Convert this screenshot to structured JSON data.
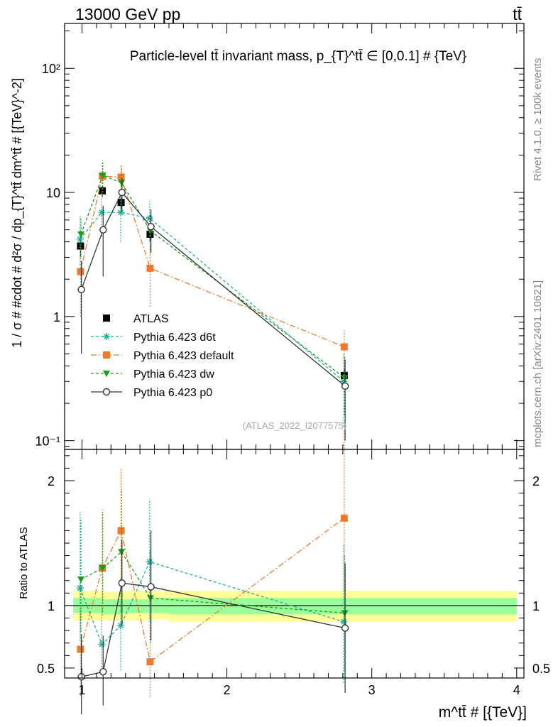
{
  "header": {
    "left": "13000 GeV pp",
    "right": "tt̄"
  },
  "side_labels": {
    "rivet": "Rivet 4.1.0, ≥ 100k events",
    "mcplots": "mcplots.cern.ch [arXiv:2401.10621]"
  },
  "chart_data": [
    {
      "type": "line",
      "panel": "main",
      "title": "Particle-level tt̄ invariant mass, p_{T}^tt̄ ∈ [0,0.1] # {TeV}",
      "ylabel": "1 / σ # #cdot # d²σ / dp_{T}^tt̄ dm^tt̄ # [{TeV}^-2]",
      "xlabel": "m^tt̄ # [{TeV}]",
      "yscale": "log",
      "ylim": [
        0.085,
        230
      ],
      "xlim": [
        0.88,
        4.05
      ],
      "ytick_labels": [
        "10⁻¹",
        "1",
        "10",
        "10²"
      ],
      "xtick_labels": [
        "1",
        "2",
        "3",
        "4"
      ],
      "watermark": "(ATLAS_2022_I2077575)",
      "series": [
        {
          "name": "ATLAS",
          "color": "#000000",
          "marker": "square",
          "x": [
            0.99,
            1.14,
            1.27,
            1.47,
            2.81
          ],
          "y": [
            3.7,
            10.3,
            8.3,
            4.6,
            0.335
          ],
          "ylo": [
            3.0,
            9.2,
            7.4,
            4.1,
            0.3
          ],
          "yhi": [
            4.4,
            11.4,
            9.2,
            5.1,
            0.37
          ]
        },
        {
          "name": "Pythia 6.423 d6t",
          "color": "#1ab29a",
          "marker": "star",
          "dash": "4,3",
          "x": [
            0.99,
            1.14,
            1.27,
            1.47,
            2.81
          ],
          "y": [
            4.2,
            6.9,
            6.9,
            6.2,
            0.3
          ],
          "ylo": [
            2.6,
            4.4,
            4.0,
            4.0,
            0.13
          ],
          "yhi": [
            6.5,
            10.0,
            10.5,
            8.5,
            0.5
          ]
        },
        {
          "name": "Pythia 6.423 default",
          "color": "#f07a2a",
          "marker": "square",
          "dash": "8,3,2,3",
          "x": [
            0.99,
            1.14,
            1.27,
            1.47,
            2.81
          ],
          "y": [
            2.3,
            13.5,
            13.3,
            2.45,
            0.57
          ],
          "ylo": [
            1.0,
            9.5,
            9.5,
            1.2,
            0.38
          ],
          "yhi": [
            3.8,
            18.0,
            17.0,
            3.9,
            0.77
          ]
        },
        {
          "name": "Pythia 6.423 dw",
          "color": "#1a9b1a",
          "marker": "triangle-down",
          "dash": "4,3",
          "x": [
            0.99,
            1.14,
            1.27,
            1.47,
            2.81
          ],
          "y": [
            4.6,
            13.7,
            12.0,
            4.9,
            0.32
          ],
          "ylo": [
            3.0,
            10.0,
            8.0,
            3.2,
            0.16
          ],
          "yhi": [
            6.3,
            18.0,
            16.0,
            6.6,
            0.48
          ]
        },
        {
          "name": "Pythia 6.423 p0",
          "color": "#333333",
          "marker": "circle",
          "x": [
            0.99,
            1.14,
            1.27,
            1.47,
            2.81
          ],
          "y": [
            1.65,
            5.0,
            10.0,
            5.3,
            0.275
          ],
          "ylo": [
            0.5,
            2.1,
            7.0,
            3.3,
            0.1
          ],
          "yhi": [
            2.8,
            7.8,
            13.0,
            7.3,
            0.45
          ]
        }
      ]
    },
    {
      "type": "line",
      "panel": "ratio",
      "ylabel": "Ratio to ATLAS",
      "ylim": [
        0.42,
        2.25
      ],
      "xlim": [
        0.88,
        4.05
      ],
      "ytick_labels": [
        "0.5",
        "1",
        "2"
      ],
      "xtick_labels": [
        "1",
        "2",
        "3",
        "4"
      ],
      "bands": [
        {
          "name": "yellow",
          "color": "#ffff99",
          "edges": [
            0.88,
            1.14,
            1.27,
            1.47,
            1.6,
            4.0
          ],
          "lo": [
            0.88,
            0.88,
            0.88,
            0.89,
            0.87
          ],
          "hi": [
            1.12,
            1.11,
            1.12,
            1.12,
            1.12
          ]
        },
        {
          "name": "green",
          "color": "#99ff99",
          "edges": [
            0.88,
            1.14,
            1.27,
            1.47,
            1.6,
            4.0
          ],
          "lo": [
            0.94,
            0.93,
            0.94,
            0.94,
            0.93
          ],
          "hi": [
            1.06,
            1.05,
            1.05,
            1.06,
            1.06
          ]
        }
      ],
      "series": [
        {
          "name": "Pythia 6.423 d6t",
          "color": "#1ab29a",
          "marker": "star",
          "dash": "4,3",
          "x": [
            0.99,
            1.14,
            1.27,
            1.47,
            2.81
          ],
          "y": [
            1.14,
            0.69,
            0.84,
            1.35,
            0.87
          ],
          "ylo": [
            0.72,
            0.44,
            0.48,
            0.87,
            0.38
          ],
          "yhi": [
            1.75,
            1.0,
            1.23,
            1.85,
            1.49
          ]
        },
        {
          "name": "Pythia 6.423 default",
          "color": "#f07a2a",
          "marker": "square",
          "dash": "8,3,2,3",
          "x": [
            0.99,
            1.14,
            1.27,
            1.47,
            2.81
          ],
          "y": [
            0.65,
            1.3,
            1.6,
            0.55,
            1.7
          ],
          "ylo": [
            0.28,
            0.92,
            1.15,
            0.27,
            1.12
          ],
          "yhi": [
            1.02,
            1.77,
            2.1,
            0.85,
            2.4
          ]
        },
        {
          "name": "Pythia 6.423 dw",
          "color": "#1a9b1a",
          "marker": "triangle-down",
          "dash": "4,3",
          "x": [
            0.99,
            1.14,
            1.27,
            1.47,
            2.81
          ],
          "y": [
            1.21,
            1.3,
            1.43,
            1.06,
            0.94
          ],
          "ylo": [
            0.79,
            0.95,
            0.95,
            0.7,
            0.48
          ],
          "yhi": [
            1.7,
            1.75,
            1.93,
            1.45,
            1.4
          ]
        },
        {
          "name": "Pythia 6.423 p0",
          "color": "#333333",
          "marker": "circle",
          "x": [
            0.99,
            1.14,
            1.27,
            1.47,
            2.81
          ],
          "y": [
            0.43,
            0.47,
            1.18,
            1.15,
            0.82
          ],
          "ylo": [
            0.13,
            0.2,
            0.84,
            0.72,
            0.3
          ],
          "yhi": [
            0.77,
            0.76,
            1.53,
            1.6,
            1.34
          ]
        }
      ]
    }
  ]
}
